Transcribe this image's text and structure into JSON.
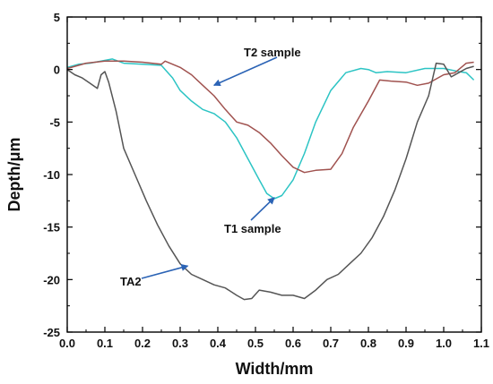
{
  "chart_data": {
    "type": "line",
    "xlabel": "Width/mm",
    "ylabel": "Depth/μm",
    "xlim": [
      0.0,
      1.1
    ],
    "ylim": [
      -25,
      5
    ],
    "xticks": [
      "0.0",
      "0.1",
      "0.2",
      "0.3",
      "0.4",
      "0.5",
      "0.6",
      "0.7",
      "0.8",
      "0.9",
      "1.0",
      "1.1"
    ],
    "yticks": [
      "5",
      "0",
      "-5",
      "-10",
      "-15",
      "-20",
      "-25"
    ],
    "grid": false,
    "colors": {
      "T1": "#2cc4c4",
      "T2": "#a0524f",
      "TA2": "#555555",
      "arrow": "#2b63b5"
    },
    "annotations": [
      {
        "text": "T2 sample",
        "target": [
          0.39,
          -1.5
        ]
      },
      {
        "text": "T1 sample",
        "target": [
          0.55,
          -12.2
        ]
      },
      {
        "text": "TA2",
        "target": [
          0.32,
          -18.7
        ]
      }
    ],
    "series": [
      {
        "id": "T1",
        "x": [
          0.0,
          0.03,
          0.06,
          0.09,
          0.12,
          0.15,
          0.2,
          0.25,
          0.28,
          0.3,
          0.33,
          0.36,
          0.39,
          0.42,
          0.45,
          0.48,
          0.51,
          0.53,
          0.55,
          0.57,
          0.6,
          0.63,
          0.66,
          0.7,
          0.74,
          0.78,
          0.8,
          0.82,
          0.85,
          0.9,
          0.95,
          1.0,
          1.04,
          1.06,
          1.08
        ],
        "y": [
          0.2,
          0.5,
          0.6,
          0.8,
          1.0,
          0.6,
          0.5,
          0.4,
          -0.8,
          -2.0,
          -3.0,
          -3.8,
          -4.2,
          -5.0,
          -6.5,
          -8.5,
          -10.5,
          -11.8,
          -12.3,
          -12.0,
          -10.5,
          -8.0,
          -5.0,
          -2.0,
          -0.3,
          0.1,
          0.0,
          -0.3,
          -0.2,
          -0.3,
          0.1,
          0.1,
          -0.2,
          -0.3,
          -1.0
        ]
      },
      {
        "id": "T2",
        "x": [
          0.0,
          0.05,
          0.1,
          0.15,
          0.2,
          0.25,
          0.26,
          0.3,
          0.33,
          0.36,
          0.39,
          0.42,
          0.45,
          0.48,
          0.51,
          0.54,
          0.57,
          0.6,
          0.63,
          0.66,
          0.7,
          0.73,
          0.76,
          0.8,
          0.83,
          0.86,
          0.9,
          0.93,
          0.96,
          1.0,
          1.03,
          1.06,
          1.08
        ],
        "y": [
          0.1,
          0.6,
          0.8,
          0.8,
          0.7,
          0.5,
          0.8,
          0.2,
          -0.5,
          -1.5,
          -2.5,
          -3.8,
          -5.0,
          -5.3,
          -6.0,
          -7.0,
          -8.2,
          -9.3,
          -9.8,
          -9.6,
          -9.5,
          -8.0,
          -5.5,
          -3.0,
          -1.0,
          -1.1,
          -1.2,
          -1.5,
          -1.3,
          -0.5,
          -0.3,
          0.6,
          0.7
        ]
      },
      {
        "id": "TA2",
        "x": [
          0.0,
          0.02,
          0.04,
          0.06,
          0.08,
          0.09,
          0.1,
          0.11,
          0.13,
          0.15,
          0.18,
          0.21,
          0.24,
          0.27,
          0.3,
          0.33,
          0.36,
          0.39,
          0.42,
          0.45,
          0.47,
          0.49,
          0.51,
          0.54,
          0.57,
          0.6,
          0.63,
          0.66,
          0.69,
          0.72,
          0.75,
          0.78,
          0.81,
          0.84,
          0.87,
          0.9,
          0.93,
          0.96,
          0.98,
          1.0,
          1.02,
          1.04,
          1.06,
          1.08
        ],
        "y": [
          0.0,
          -0.5,
          -0.8,
          -1.3,
          -1.8,
          -0.5,
          -0.2,
          -1.2,
          -4.0,
          -7.5,
          -10.0,
          -12.5,
          -14.8,
          -16.8,
          -18.5,
          -19.5,
          -20.0,
          -20.5,
          -20.8,
          -21.5,
          -21.9,
          -21.8,
          -21.0,
          -21.2,
          -21.5,
          -21.5,
          -21.8,
          -21.0,
          -20.0,
          -19.5,
          -18.5,
          -17.5,
          -16.0,
          -14.0,
          -11.5,
          -8.5,
          -5.0,
          -2.5,
          0.6,
          0.5,
          -0.7,
          -0.3,
          0.1,
          0.3
        ]
      }
    ]
  }
}
